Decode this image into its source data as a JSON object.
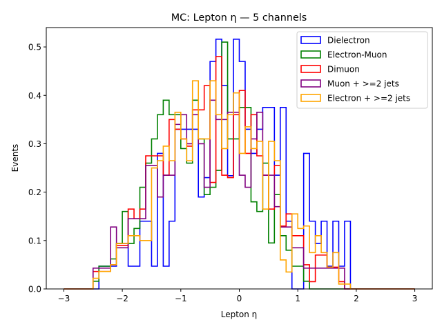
{
  "chart_data": {
    "type": "step-histogram",
    "title": "MC: Lepton η — 5 channels",
    "xlabel": "Lepton η",
    "ylabel": "Events",
    "xlim": [
      -3.3,
      3.3
    ],
    "ylim": [
      0,
      0.54
    ],
    "xticks": [
      -3,
      -2,
      -1,
      0,
      1,
      2,
      3
    ],
    "xtick_labels": [
      "−3",
      "−2",
      "−1",
      "0",
      "1",
      "2",
      "3"
    ],
    "yticks": [
      0.0,
      0.1,
      0.2,
      0.3,
      0.4,
      0.5
    ],
    "ytick_labels": [
      "0.0",
      "0.1",
      "0.2",
      "0.3",
      "0.4",
      "0.5"
    ],
    "legend_position": "top-right",
    "bin_edges": [
      -3.0,
      -2.9,
      -2.8,
      -2.7,
      -2.6,
      -2.5,
      -2.4,
      -2.3,
      -2.2,
      -2.1,
      -2.0,
      -1.9,
      -1.8,
      -1.7,
      -1.6,
      -1.5,
      -1.4,
      -1.3,
      -1.2,
      -1.1,
      -1.0,
      -0.9,
      -0.8,
      -0.7,
      -0.6,
      -0.5,
      -0.4,
      -0.3,
      -0.2,
      -0.1,
      0.0,
      0.1,
      0.2,
      0.3,
      0.4,
      0.5,
      0.6,
      0.7,
      0.8,
      0.9,
      1.0,
      1.1,
      1.2,
      1.3,
      1.4,
      1.5,
      1.6,
      1.7,
      1.8,
      1.9,
      2.0,
      2.1,
      2.2,
      2.3,
      2.4,
      2.5,
      2.6,
      2.7,
      2.8,
      2.9,
      3.0
    ],
    "series": [
      {
        "name": "Dielectron",
        "color": "#0000ff",
        "values": [
          0,
          0,
          0,
          0,
          0,
          0.0,
          0.047,
          0.047,
          0.047,
          0.094,
          0.094,
          0.047,
          0.047,
          0.14,
          0.14,
          0.047,
          0.28,
          0.047,
          0.14,
          0.33,
          0.33,
          0.33,
          0.33,
          0.19,
          0.23,
          0.47,
          0.516,
          0.42,
          0.234,
          0.516,
          0.47,
          0.33,
          0.28,
          0.33,
          0.375,
          0.375,
          0.235,
          0.375,
          0.14,
          0.0,
          0.0,
          0.28,
          0.14,
          0.094,
          0.14,
          0.047,
          0.14,
          0.047,
          0.14,
          0.0,
          0.0,
          0,
          0,
          0,
          0,
          0,
          0,
          0,
          0,
          0
        ]
      },
      {
        "name": "Electron-Muon",
        "color": "#008000",
        "values": [
          0,
          0,
          0,
          0,
          0,
          0.016,
          0.047,
          0.047,
          0.062,
          0.094,
          0.16,
          0.094,
          0.125,
          0.21,
          0.26,
          0.31,
          0.36,
          0.39,
          0.36,
          0.36,
          0.29,
          0.26,
          0.39,
          0.31,
          0.195,
          0.21,
          0.245,
          0.51,
          0.31,
          0.31,
          0.375,
          0.375,
          0.18,
          0.16,
          0.26,
          0.095,
          0.195,
          0.11,
          0.08,
          0.047,
          0.047,
          0.016,
          0.0,
          0,
          0,
          0,
          0,
          0,
          0,
          0,
          0,
          0,
          0,
          0,
          0,
          0,
          0,
          0,
          0,
          0
        ]
      },
      {
        "name": "Dimuon",
        "color": "#ff0000",
        "values": [
          0,
          0,
          0,
          0,
          0,
          0.036,
          0.036,
          0.036,
          0.05,
          0.09,
          0.09,
          0.165,
          0.145,
          0.165,
          0.275,
          0.275,
          0.275,
          0.235,
          0.35,
          0.33,
          0.31,
          0.295,
          0.37,
          0.37,
          0.42,
          0.22,
          0.48,
          0.235,
          0.23,
          0.36,
          0.41,
          0.28,
          0.36,
          0.275,
          0.235,
          0.165,
          0.255,
          0.13,
          0.155,
          0.11,
          0.11,
          0.05,
          0.015,
          0.07,
          0.07,
          0.045,
          0.045,
          0.015,
          0,
          0,
          0,
          0,
          0,
          0,
          0,
          0,
          0,
          0,
          0,
          0
        ]
      },
      {
        "name": "Muon + >=2 jets",
        "color": "#800080",
        "values": [
          0,
          0,
          0,
          0,
          0,
          0.043,
          0.043,
          0.043,
          0.128,
          0.085,
          0.085,
          0.145,
          0.145,
          0.145,
          0.255,
          0.255,
          0.19,
          0.235,
          0.235,
          0.34,
          0.36,
          0.3,
          0.36,
          0.3,
          0.21,
          0.39,
          0.35,
          0.35,
          0.365,
          0.365,
          0.235,
          0.21,
          0.31,
          0.365,
          0.235,
          0.235,
          0.17,
          0.128,
          0.128,
          0.085,
          0.085,
          0.043,
          0.043,
          0.043,
          0.043,
          0.043,
          0.043,
          0.043,
          0,
          0,
          0,
          0,
          0,
          0,
          0,
          0,
          0,
          0,
          0,
          0
        ]
      },
      {
        "name": "Electron + >=2 jets",
        "color": "#ffa500",
        "values": [
          0,
          0,
          0,
          0,
          0,
          0.022,
          0.036,
          0.036,
          0.05,
          0.094,
          0.094,
          0.11,
          0.11,
          0.1,
          0.1,
          0.25,
          0.265,
          0.295,
          0.265,
          0.365,
          0.31,
          0.265,
          0.43,
          0.31,
          0.31,
          0.43,
          0.36,
          0.29,
          0.36,
          0.405,
          0.28,
          0.335,
          0.29,
          0.305,
          0.165,
          0.305,
          0.265,
          0.06,
          0.035,
          0.155,
          0.125,
          0.13,
          0.075,
          0.11,
          0.075,
          0.045,
          0.075,
          0.01,
          0.01,
          0,
          0,
          0,
          0,
          0,
          0,
          0,
          0,
          0,
          0,
          0
        ]
      }
    ]
  }
}
